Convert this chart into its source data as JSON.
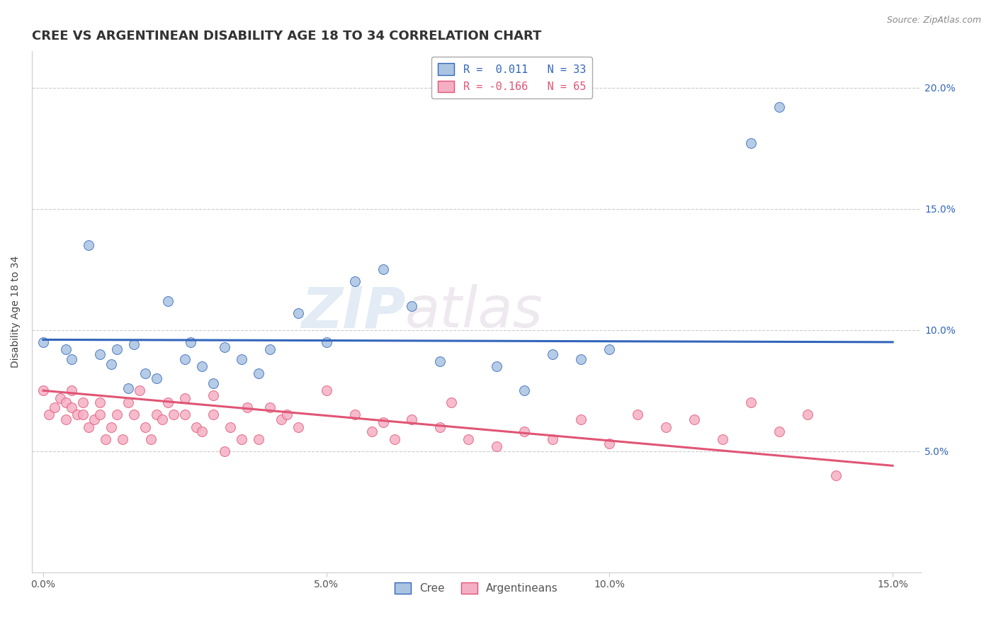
{
  "title": "CREE VS ARGENTINEAN DISABILITY AGE 18 TO 34 CORRELATION CHART",
  "source": "Source: ZipAtlas.com",
  "ylabel": "Disability Age 18 to 34",
  "xlim": [
    -0.002,
    0.155
  ],
  "ylim": [
    0.0,
    0.215
  ],
  "x_ticks": [
    0.0,
    0.05,
    0.1,
    0.15
  ],
  "x_tick_labels": [
    "0.0%",
    "5.0%",
    "10.0%",
    "15.0%"
  ],
  "y_ticks": [
    0.05,
    0.1,
    0.15,
    0.2
  ],
  "y_tick_labels": [
    "5.0%",
    "10.0%",
    "15.0%",
    "20.0%"
  ],
  "legend_cree": "R =  0.011   N = 33",
  "legend_arg": "R = -0.166   N = 65",
  "cree_color": "#aac4e2",
  "arg_color": "#f5afc5",
  "cree_line_color": "#3366bb",
  "arg_line_color": "#e05575",
  "watermark_zip": "ZIP",
  "watermark_atlas": "atlas",
  "background_color": "#ffffff",
  "grid_color": "#cccccc",
  "title_fontsize": 13,
  "label_fontsize": 10,
  "tick_fontsize": 10,
  "marker_size": 100,
  "cree_x": [
    0.0,
    0.004,
    0.005,
    0.008,
    0.01,
    0.012,
    0.013,
    0.015,
    0.016,
    0.018,
    0.02,
    0.022,
    0.025,
    0.026,
    0.028,
    0.03,
    0.032,
    0.035,
    0.038,
    0.04,
    0.045,
    0.05,
    0.055,
    0.06,
    0.065,
    0.07,
    0.08,
    0.085,
    0.09,
    0.095,
    0.1,
    0.125,
    0.13
  ],
  "cree_y": [
    0.095,
    0.092,
    0.088,
    0.135,
    0.09,
    0.086,
    0.092,
    0.076,
    0.094,
    0.082,
    0.08,
    0.112,
    0.088,
    0.095,
    0.085,
    0.078,
    0.093,
    0.088,
    0.082,
    0.092,
    0.107,
    0.095,
    0.12,
    0.125,
    0.11,
    0.087,
    0.085,
    0.075,
    0.09,
    0.088,
    0.092,
    0.177,
    0.192
  ],
  "arg_x": [
    0.0,
    0.001,
    0.002,
    0.003,
    0.004,
    0.004,
    0.005,
    0.005,
    0.006,
    0.007,
    0.007,
    0.008,
    0.009,
    0.01,
    0.01,
    0.011,
    0.012,
    0.013,
    0.014,
    0.015,
    0.016,
    0.017,
    0.018,
    0.019,
    0.02,
    0.021,
    0.022,
    0.023,
    0.025,
    0.025,
    0.027,
    0.028,
    0.03,
    0.03,
    0.032,
    0.033,
    0.035,
    0.036,
    0.038,
    0.04,
    0.042,
    0.043,
    0.045,
    0.05,
    0.055,
    0.058,
    0.06,
    0.062,
    0.065,
    0.07,
    0.072,
    0.075,
    0.08,
    0.085,
    0.09,
    0.095,
    0.1,
    0.105,
    0.11,
    0.115,
    0.12,
    0.125,
    0.13,
    0.135,
    0.14
  ],
  "arg_y": [
    0.075,
    0.065,
    0.068,
    0.072,
    0.063,
    0.07,
    0.068,
    0.075,
    0.065,
    0.07,
    0.065,
    0.06,
    0.063,
    0.065,
    0.07,
    0.055,
    0.06,
    0.065,
    0.055,
    0.07,
    0.065,
    0.075,
    0.06,
    0.055,
    0.065,
    0.063,
    0.07,
    0.065,
    0.065,
    0.072,
    0.06,
    0.058,
    0.065,
    0.073,
    0.05,
    0.06,
    0.055,
    0.068,
    0.055,
    0.068,
    0.063,
    0.065,
    0.06,
    0.075,
    0.065,
    0.058,
    0.062,
    0.055,
    0.063,
    0.06,
    0.07,
    0.055,
    0.052,
    0.058,
    0.055,
    0.063,
    0.053,
    0.065,
    0.06,
    0.063,
    0.055,
    0.07,
    0.058,
    0.065,
    0.04
  ],
  "cree_line_start_y": 0.096,
  "cree_line_end_y": 0.095,
  "arg_line_start_y": 0.075,
  "arg_line_end_y": 0.044
}
